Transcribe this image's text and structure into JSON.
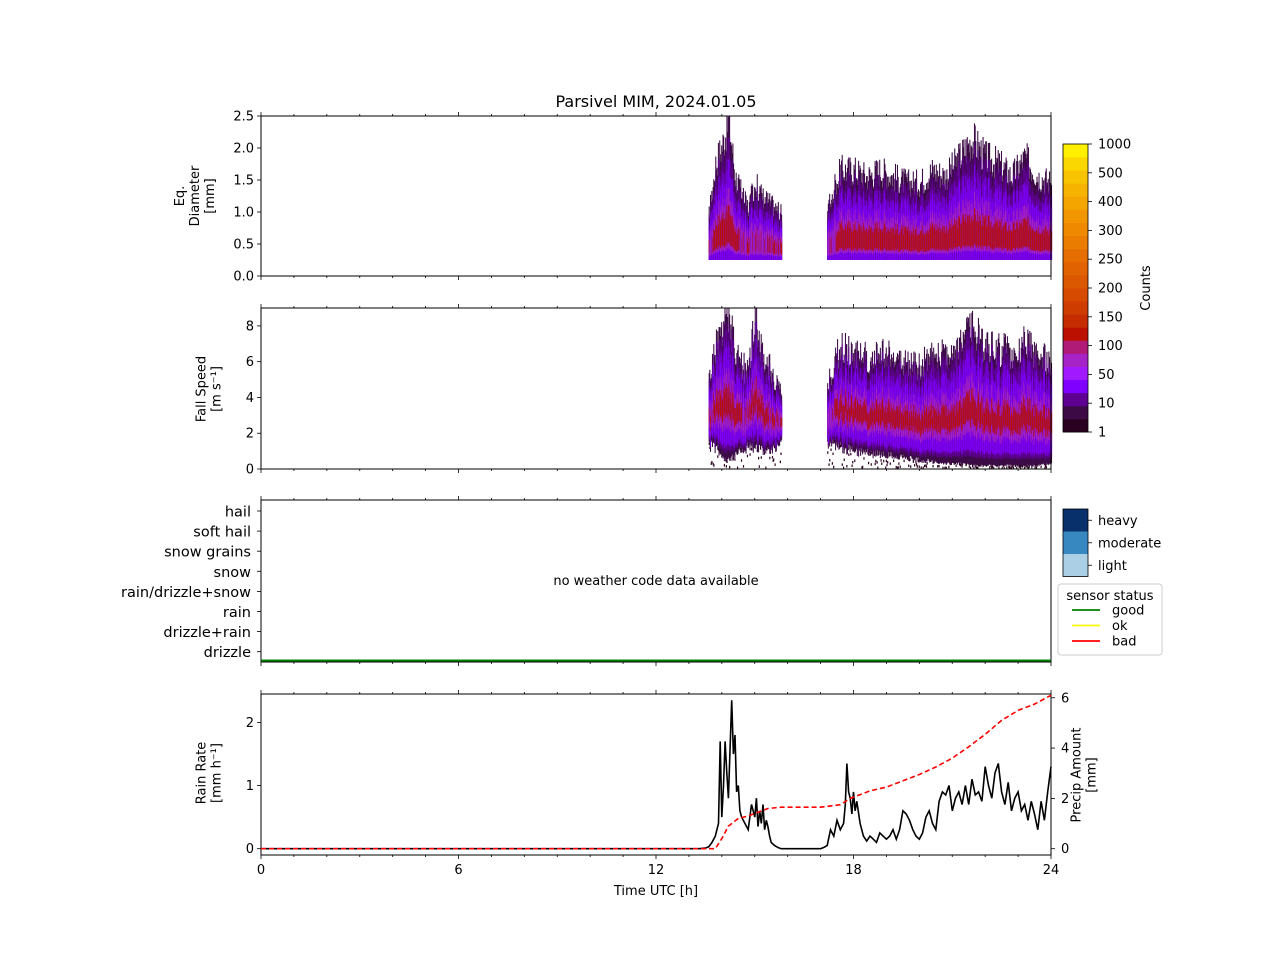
{
  "title": "Parsivel MIM, 2024.01.05",
  "chart_data": [
    {
      "id": "diameter",
      "type": "heatmap",
      "ylabel": [
        "Eq.",
        "Diameter",
        "[mm]"
      ],
      "ylim": [
        0,
        2.5
      ],
      "yticks": [
        "0.0",
        "0.5",
        "1.0",
        "1.5",
        "2.0",
        "2.5"
      ],
      "ytick_values": [
        0,
        0.5,
        1.0,
        1.5,
        2.0,
        2.5
      ],
      "xlim": [
        0,
        24
      ],
      "data_segments": [
        [
          13.6,
          15.8
        ],
        [
          17.2,
          24.0
        ]
      ],
      "y_base": 0.25,
      "profile_x": [
        13.6,
        13.8,
        14.0,
        14.2,
        14.4,
        14.6,
        14.8,
        15.0,
        15.2,
        15.4,
        15.6,
        15.8,
        17.2,
        17.6,
        18.0,
        18.4,
        18.8,
        19.2,
        19.6,
        20.0,
        20.4,
        20.8,
        21.2,
        21.6,
        22.0,
        22.4,
        22.8,
        23.2,
        23.6,
        24.0
      ],
      "profile_top": [
        1.0,
        1.8,
        2.1,
        2.5,
        1.6,
        1.3,
        1.1,
        1.5,
        1.3,
        1.2,
        1.1,
        1.0,
        1.1,
        1.7,
        1.7,
        1.6,
        1.7,
        1.6,
        1.5,
        1.5,
        1.7,
        1.6,
        1.9,
        2.2,
        1.9,
        1.8,
        1.6,
        1.9,
        1.6,
        1.5
      ]
    },
    {
      "id": "fallspeed",
      "type": "heatmap",
      "ylabel": [
        "Fall Speed",
        "[m s⁻¹]"
      ],
      "ylim": [
        0,
        9
      ],
      "yticks": [
        "0",
        "2",
        "4",
        "6",
        "8"
      ],
      "ytick_values": [
        0,
        2,
        4,
        6,
        8
      ],
      "xlim": [
        0,
        24
      ],
      "data_segments": [
        [
          13.6,
          15.8
        ],
        [
          17.2,
          24.0
        ]
      ],
      "profile_x": [
        13.6,
        13.8,
        14.0,
        14.2,
        14.4,
        14.6,
        14.8,
        15.0,
        15.2,
        15.4,
        15.6,
        15.8,
        17.2,
        17.6,
        18.0,
        18.4,
        18.8,
        19.2,
        19.6,
        20.0,
        20.4,
        20.8,
        21.2,
        21.6,
        22.0,
        22.4,
        22.8,
        23.2,
        23.6,
        24.0
      ],
      "profile_top": [
        5.0,
        7.0,
        8.0,
        9.0,
        6.5,
        6.0,
        5.5,
        9.0,
        6.5,
        6.0,
        5.0,
        4.5,
        5.0,
        7.0,
        6.5,
        6.5,
        6.5,
        6.5,
        6.0,
        6.0,
        6.5,
        6.5,
        7.0,
        8.0,
        7.0,
        7.0,
        6.5,
        7.5,
        6.5,
        6.0
      ],
      "profile_bottom": [
        1.3,
        1.2,
        0.6,
        0.5,
        0.8,
        1.0,
        1.2,
        1.2,
        1.1,
        1.1,
        1.2,
        1.3,
        1.5,
        1.2,
        1.0,
        0.9,
        0.8,
        0.7,
        0.6,
        0.5,
        0.4,
        0.3,
        0.3,
        0.2,
        0.2,
        0.2,
        0.2,
        0.2,
        0.2,
        0.3
      ]
    },
    {
      "id": "weather_code",
      "type": "line",
      "categories": [
        "hail",
        "soft hail",
        "snow grains",
        "snow",
        "rain/drizzle+snow",
        "rain",
        "drizzle+rain",
        "drizzle"
      ],
      "xlim": [
        0,
        24
      ],
      "annotation": "no weather code data available",
      "sensor_status": "good",
      "status_value": 0
    },
    {
      "id": "rain",
      "type": "line",
      "xlabel": "Time UTC [h]",
      "xticks": [
        "0",
        "6",
        "12",
        "18",
        "24"
      ],
      "xtick_values": [
        0,
        6,
        12,
        18,
        24
      ],
      "xlim": [
        0,
        24
      ],
      "ylabel_left": [
        "Rain Rate",
        "[mm h⁻¹]"
      ],
      "ylim_left": [
        -0.1,
        2.45
      ],
      "yticks_left": [
        "0",
        "1",
        "2"
      ],
      "ytick_left_values": [
        0,
        1,
        2
      ],
      "ylabel_right": [
        "Precip Amount",
        "[mm]"
      ],
      "ylim_right": [
        -0.25,
        6.15
      ],
      "yticks_right": [
        "0",
        "2",
        "4",
        "6"
      ],
      "ytick_right_values": [
        0,
        2,
        4,
        6
      ],
      "series": [
        {
          "axis": "left",
          "color": "#000000",
          "style": "solid",
          "x": [
            0,
            13.3,
            13.5,
            13.6,
            13.7,
            13.8,
            13.9,
            13.95,
            14.0,
            14.05,
            14.1,
            14.15,
            14.2,
            14.25,
            14.3,
            14.35,
            14.4,
            14.45,
            14.5,
            14.55,
            14.6,
            14.7,
            14.8,
            14.9,
            15.0,
            15.05,
            15.1,
            15.15,
            15.2,
            15.25,
            15.3,
            15.35,
            15.4,
            15.45,
            15.5,
            15.6,
            15.7,
            15.8,
            16.0,
            16.5,
            17.0,
            17.1,
            17.2,
            17.3,
            17.4,
            17.5,
            17.6,
            17.7,
            17.75,
            17.8,
            17.85,
            17.9,
            17.95,
            18.0,
            18.05,
            18.1,
            18.2,
            18.3,
            18.4,
            18.5,
            18.6,
            18.7,
            18.8,
            18.9,
            19.0,
            19.1,
            19.2,
            19.3,
            19.4,
            19.5,
            19.6,
            19.7,
            19.8,
            19.9,
            20.0,
            20.1,
            20.2,
            20.3,
            20.4,
            20.5,
            20.6,
            20.7,
            20.8,
            20.9,
            21.0,
            21.1,
            21.2,
            21.3,
            21.4,
            21.5,
            21.6,
            21.7,
            21.8,
            21.9,
            22.0,
            22.1,
            22.2,
            22.3,
            22.4,
            22.5,
            22.6,
            22.7,
            22.8,
            22.9,
            23.0,
            23.1,
            23.2,
            23.3,
            23.4,
            23.5,
            23.6,
            23.7,
            23.8,
            23.9,
            24.0
          ],
          "values": [
            0,
            0,
            0.01,
            0.03,
            0.1,
            0.2,
            0.4,
            1.7,
            0.5,
            1.0,
            1.7,
            1.2,
            0.8,
            1.6,
            2.35,
            1.5,
            1.8,
            0.9,
            1.0,
            0.6,
            0.5,
            0.4,
            0.3,
            0.7,
            0.5,
            0.8,
            0.35,
            0.6,
            0.4,
            0.7,
            0.3,
            0.45,
            0.35,
            0.2,
            0.1,
            0.05,
            0.02,
            0.0,
            0.0,
            0.0,
            0.0,
            0.02,
            0.05,
            0.3,
            0.2,
            0.45,
            0.3,
            0.4,
            0.7,
            1.35,
            0.9,
            0.8,
            0.55,
            0.9,
            0.6,
            0.75,
            0.4,
            0.2,
            0.12,
            0.2,
            0.15,
            0.1,
            0.25,
            0.2,
            0.15,
            0.2,
            0.3,
            0.15,
            0.3,
            0.6,
            0.55,
            0.45,
            0.3,
            0.2,
            0.15,
            0.25,
            0.5,
            0.6,
            0.4,
            0.3,
            0.75,
            0.9,
            0.85,
            1.0,
            0.6,
            0.8,
            0.9,
            0.7,
            1.0,
            0.7,
            1.1,
            0.85,
            0.9,
            0.75,
            1.3,
            1.0,
            0.8,
            1.2,
            1.35,
            0.9,
            0.7,
            1.05,
            0.6,
            0.8,
            0.9,
            0.6,
            0.7,
            0.45,
            0.75,
            0.55,
            0.3,
            0.75,
            0.45,
            0.9,
            1.3
          ]
        },
        {
          "axis": "right",
          "color": "#ff0000",
          "style": "dashed",
          "x": [
            0,
            13.8,
            14.0,
            14.2,
            14.5,
            14.8,
            15.1,
            15.4,
            15.8,
            16.5,
            17.0,
            17.3,
            17.6,
            17.9,
            18.1,
            18.5,
            19.0,
            19.5,
            20.0,
            20.5,
            21.0,
            21.5,
            22.0,
            22.5,
            23.0,
            23.5,
            24.0
          ],
          "values": [
            0,
            0,
            0.4,
            0.9,
            1.2,
            1.3,
            1.45,
            1.6,
            1.65,
            1.65,
            1.65,
            1.7,
            1.75,
            2.0,
            2.1,
            2.3,
            2.45,
            2.7,
            2.95,
            3.25,
            3.6,
            4.05,
            4.55,
            5.1,
            5.5,
            5.75,
            6.1
          ]
        }
      ]
    }
  ],
  "colorbar": {
    "label": "Counts",
    "ticks": [
      "1",
      "10",
      "50",
      "100",
      "150",
      "200",
      "250",
      "300",
      "400",
      "500",
      "1000"
    ],
    "colors": [
      "#2a0020",
      "#3c0b46",
      "#5e0092",
      "#8000ff",
      "#a019ff",
      "#a624c7",
      "#b01b78",
      "#bb1000",
      "#c52d00",
      "#cf3c00",
      "#d64b00",
      "#db5700",
      "#e06200",
      "#e66e00",
      "#ea7c00",
      "#ee8900",
      "#f29600",
      "#f4a500",
      "#f6b300",
      "#f8c300",
      "#fbd700",
      "#fff000"
    ]
  },
  "intensity_legend": {
    "labels": [
      "heavy",
      "moderate",
      "light"
    ],
    "colors": [
      "#08306b",
      "#3787c0",
      "#abd0e6"
    ]
  },
  "status_legend": {
    "title": "sensor status",
    "items": [
      {
        "label": "good",
        "color": "#008000"
      },
      {
        "label": "ok",
        "color": "#ffff00"
      },
      {
        "label": "bad",
        "color": "#ff0000"
      }
    ]
  }
}
